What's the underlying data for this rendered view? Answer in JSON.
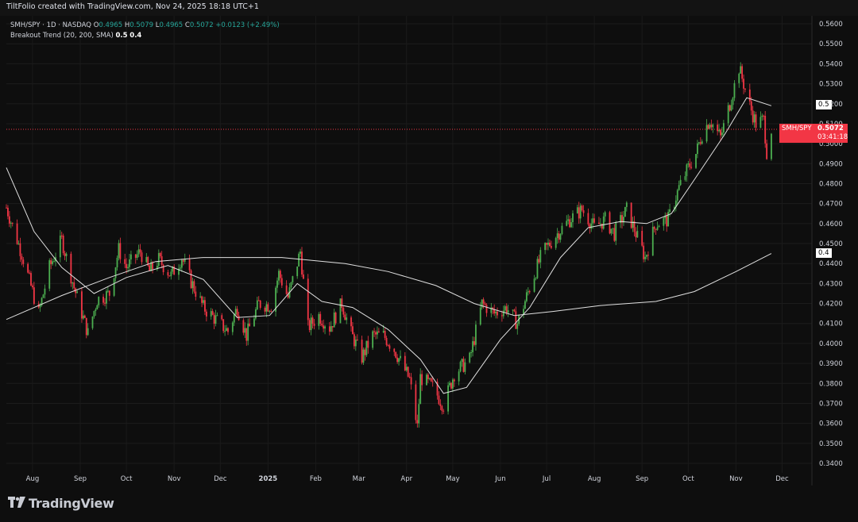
{
  "header": {
    "text": "TiltFolio created with TradingView.com, Nov 24, 2025 18:18 UTC+1"
  },
  "legend": {
    "symbol": "SMH/SPY · 1D · NASDAQ",
    "o_key": "O",
    "o_val": "0.4965",
    "h_key": "H",
    "h_val": "0.5079",
    "l_key": "L",
    "l_val": "0.4965",
    "c_key": "C",
    "c_val": "0.5072",
    "change": "+0.0123 (+2.49%)",
    "indicator_name": "Breakout Trend (20, 200, SMA)",
    "indicator_v1": "0.5",
    "indicator_v2": "0.4"
  },
  "tags": {
    "level_05": "0.5",
    "level_04": "0.4",
    "last_symbol": "SMH/SPY",
    "last_price": "0.5072",
    "countdown": "03:41:18"
  },
  "logo": {
    "text": "TradingView"
  },
  "colors": {
    "up": "#26a69a",
    "up_candle": "#4caf50",
    "down": "#f23645",
    "background": "#0e0e0e",
    "ma": "#e0e0e0",
    "last_line": "#f23645"
  },
  "chart_data": {
    "type": "candlestick",
    "symbol": "SMH/SPY",
    "interval": "1D",
    "y_ticks": [
      "0.3400",
      "0.3500",
      "0.3600",
      "0.3700",
      "0.3800",
      "0.3900",
      "0.4000",
      "0.4100",
      "0.4200",
      "0.4300",
      "0.4400",
      "0.4500",
      "0.4600",
      "0.4700",
      "0.4800",
      "0.4900",
      "0.5000",
      "0.5100",
      "0.5200",
      "0.5300",
      "0.5400",
      "0.5500",
      "0.5600"
    ],
    "ylim": [
      0.335,
      0.5655
    ],
    "x_ticks": [
      "Aug",
      "Sep",
      "Oct",
      "Nov",
      "Dec",
      "2025",
      "Feb",
      "Mar",
      "Apr",
      "May",
      "Jun",
      "Jul",
      "Aug",
      "Sep",
      "Oct",
      "Nov",
      "Dec"
    ],
    "last_price": 0.5072,
    "horizontal_levels": [
      0.5,
      0.4
    ],
    "close_path": [
      {
        "date": "2024-07-15",
        "close": 0.468
      },
      {
        "date": "2024-07-25",
        "close": 0.445
      },
      {
        "date": "2024-08-05",
        "close": 0.415
      },
      {
        "date": "2024-08-12",
        "close": 0.438
      },
      {
        "date": "2024-08-20",
        "close": 0.452
      },
      {
        "date": "2024-08-28",
        "close": 0.428
      },
      {
        "date": "2024-09-06",
        "close": 0.405
      },
      {
        "date": "2024-09-12",
        "close": 0.422
      },
      {
        "date": "2024-09-20",
        "close": 0.425
      },
      {
        "date": "2024-09-26",
        "close": 0.447
      },
      {
        "date": "2024-10-01",
        "close": 0.438
      },
      {
        "date": "2024-10-10",
        "close": 0.446
      },
      {
        "date": "2024-10-16",
        "close": 0.436
      },
      {
        "date": "2024-10-22",
        "close": 0.442
      },
      {
        "date": "2024-10-30",
        "close": 0.434
      },
      {
        "date": "2024-11-06",
        "close": 0.443
      },
      {
        "date": "2024-11-12",
        "close": 0.431
      },
      {
        "date": "2024-11-20",
        "close": 0.418
      },
      {
        "date": "2024-11-28",
        "close": 0.412
      },
      {
        "date": "2024-12-06",
        "close": 0.406
      },
      {
        "date": "2024-12-12",
        "close": 0.418
      },
      {
        "date": "2024-12-18",
        "close": 0.404
      },
      {
        "date": "2024-12-26",
        "close": 0.42
      },
      {
        "date": "2025-01-03",
        "close": 0.419
      },
      {
        "date": "2025-01-08",
        "close": 0.435
      },
      {
        "date": "2025-01-14",
        "close": 0.423
      },
      {
        "date": "2025-01-22",
        "close": 0.446
      },
      {
        "date": "2025-01-27",
        "close": 0.408
      },
      {
        "date": "2025-02-03",
        "close": 0.414
      },
      {
        "date": "2025-02-10",
        "close": 0.408
      },
      {
        "date": "2025-02-18",
        "close": 0.42
      },
      {
        "date": "2025-02-24",
        "close": 0.405
      },
      {
        "date": "2025-03-03",
        "close": 0.393
      },
      {
        "date": "2025-03-10",
        "close": 0.404
      },
      {
        "date": "2025-03-17",
        "close": 0.404
      },
      {
        "date": "2025-03-24",
        "close": 0.397
      },
      {
        "date": "2025-04-03",
        "close": 0.382
      },
      {
        "date": "2025-04-08",
        "close": 0.358
      },
      {
        "date": "2025-04-10",
        "close": 0.383
      },
      {
        "date": "2025-04-18",
        "close": 0.378
      },
      {
        "date": "2025-04-25",
        "close": 0.369
      },
      {
        "date": "2025-05-02",
        "close": 0.385
      },
      {
        "date": "2025-05-12",
        "close": 0.392
      },
      {
        "date": "2025-05-20",
        "close": 0.42
      },
      {
        "date": "2025-05-28",
        "close": 0.415
      },
      {
        "date": "2025-06-05",
        "close": 0.418
      },
      {
        "date": "2025-06-12",
        "close": 0.41
      },
      {
        "date": "2025-06-20",
        "close": 0.428
      },
      {
        "date": "2025-06-28",
        "close": 0.445
      },
      {
        "date": "2025-07-08",
        "close": 0.455
      },
      {
        "date": "2025-07-16",
        "close": 0.462
      },
      {
        "date": "2025-07-24",
        "close": 0.467
      },
      {
        "date": "2025-08-01",
        "close": 0.458
      },
      {
        "date": "2025-08-08",
        "close": 0.462
      },
      {
        "date": "2025-08-14",
        "close": 0.455
      },
      {
        "date": "2025-08-22",
        "close": 0.467
      },
      {
        "date": "2025-08-28",
        "close": 0.455
      },
      {
        "date": "2025-09-03",
        "close": 0.443
      },
      {
        "date": "2025-09-10",
        "close": 0.46
      },
      {
        "date": "2025-09-18",
        "close": 0.462
      },
      {
        "date": "2025-09-25",
        "close": 0.478
      },
      {
        "date": "2025-10-01",
        "close": 0.488
      },
      {
        "date": "2025-10-06",
        "close": 0.495
      },
      {
        "date": "2025-10-10",
        "close": 0.505
      },
      {
        "date": "2025-10-15",
        "close": 0.512
      },
      {
        "date": "2025-10-22",
        "close": 0.503
      },
      {
        "date": "2025-10-28",
        "close": 0.52
      },
      {
        "date": "2025-11-03",
        "close": 0.538
      },
      {
        "date": "2025-11-06",
        "close": 0.53
      },
      {
        "date": "2025-11-10",
        "close": 0.519
      },
      {
        "date": "2025-11-14",
        "close": 0.51
      },
      {
        "date": "2025-11-19",
        "close": 0.512
      },
      {
        "date": "2025-11-21",
        "close": 0.496
      },
      {
        "date": "2025-11-24",
        "close": 0.5072
      }
    ],
    "sma20": [
      {
        "date": "2024-07-15",
        "value": 0.488
      },
      {
        "date": "2024-08-02",
        "value": 0.456
      },
      {
        "date": "2024-08-20",
        "value": 0.438
      },
      {
        "date": "2024-09-10",
        "value": 0.425
      },
      {
        "date": "2024-10-01",
        "value": 0.433
      },
      {
        "date": "2024-10-28",
        "value": 0.439
      },
      {
        "date": "2024-11-20",
        "value": 0.432
      },
      {
        "date": "2024-12-12",
        "value": 0.413
      },
      {
        "date": "2025-01-02",
        "value": 0.414
      },
      {
        "date": "2025-01-20",
        "value": 0.43
      },
      {
        "date": "2025-02-05",
        "value": 0.421
      },
      {
        "date": "2025-02-25",
        "value": 0.418
      },
      {
        "date": "2025-03-20",
        "value": 0.407
      },
      {
        "date": "2025-04-10",
        "value": 0.392
      },
      {
        "date": "2025-04-25",
        "value": 0.375
      },
      {
        "date": "2025-05-10",
        "value": 0.378
      },
      {
        "date": "2025-06-01",
        "value": 0.402
      },
      {
        "date": "2025-06-20",
        "value": 0.418
      },
      {
        "date": "2025-07-10",
        "value": 0.443
      },
      {
        "date": "2025-07-28",
        "value": 0.458
      },
      {
        "date": "2025-08-18",
        "value": 0.461
      },
      {
        "date": "2025-09-04",
        "value": 0.46
      },
      {
        "date": "2025-09-20",
        "value": 0.465
      },
      {
        "date": "2025-10-05",
        "value": 0.482
      },
      {
        "date": "2025-10-25",
        "value": 0.505
      },
      {
        "date": "2025-11-08",
        "value": 0.523
      },
      {
        "date": "2025-11-24",
        "value": 0.519
      }
    ],
    "sma200": [
      {
        "date": "2024-07-15",
        "value": 0.412
      },
      {
        "date": "2024-08-20",
        "value": 0.424
      },
      {
        "date": "2024-09-20",
        "value": 0.433
      },
      {
        "date": "2024-10-20",
        "value": 0.441
      },
      {
        "date": "2024-11-20",
        "value": 0.443
      },
      {
        "date": "2025-01-10",
        "value": 0.443
      },
      {
        "date": "2025-02-20",
        "value": 0.44
      },
      {
        "date": "2025-03-20",
        "value": 0.436
      },
      {
        "date": "2025-04-20",
        "value": 0.429
      },
      {
        "date": "2025-05-15",
        "value": 0.42
      },
      {
        "date": "2025-06-10",
        "value": 0.414
      },
      {
        "date": "2025-07-05",
        "value": 0.416
      },
      {
        "date": "2025-08-05",
        "value": 0.419
      },
      {
        "date": "2025-09-10",
        "value": 0.421
      },
      {
        "date": "2025-10-05",
        "value": 0.426
      },
      {
        "date": "2025-11-01",
        "value": 0.436
      },
      {
        "date": "2025-11-24",
        "value": 0.445
      }
    ]
  }
}
